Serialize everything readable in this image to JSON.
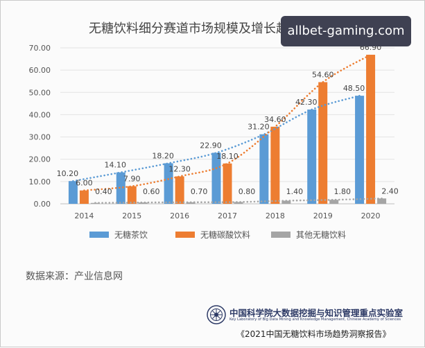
{
  "chart_data": {
    "type": "bar",
    "title": "无糖饮料细分赛道市场规模及增长趋势",
    "categories": [
      "2014",
      "2015",
      "2016",
      "2017",
      "2018",
      "2019",
      "2020"
    ],
    "y_tick_labels": [
      "0.00",
      "10.00",
      "20.00",
      "30.00",
      "40.00",
      "50.00",
      "60.00",
      "70.00"
    ],
    "ylim": [
      0,
      70
    ],
    "grid": true,
    "legend_position": "bottom",
    "trendlines": "dotted",
    "series": [
      {
        "name": "无糖茶饮",
        "color": "#5b9bd5",
        "values": [
          10.2,
          14.1,
          18.2,
          22.9,
          31.2,
          42.3,
          48.5
        ],
        "labels": [
          "10.20",
          "14.10",
          "18.20",
          "22.90",
          "31.20",
          "42.30",
          "48.50"
        ]
      },
      {
        "name": "无糖碳酸饮料",
        "color": "#ed7d31",
        "values": [
          6.0,
          7.9,
          12.3,
          18.1,
          34.6,
          54.6,
          66.9
        ],
        "labels": [
          "6.00",
          "7.90",
          "12.30",
          "18.10",
          "34.60",
          "54.60",
          "66.90"
        ]
      },
      {
        "name": "其他无糖饮料",
        "color": "#a5a5a5",
        "values": [
          0.4,
          0.6,
          0.7,
          0.8,
          1.4,
          1.8,
          2.4
        ],
        "labels": [
          "0.40",
          "0.60",
          "0.70",
          "0.80",
          "1.40",
          "1.80",
          "2.40"
        ]
      }
    ]
  },
  "watermark": "allbet-gaming.com",
  "source_text": "数据来源：产业信息网",
  "institution": {
    "name": "中国科学院大数据挖掘与知识管理重点实验室",
    "english": "Key Laboratory of Big Data Mining and Knowledge Management, Chinese Academy of Sciences",
    "report": "《2021中国无糖饮料市场趋势洞察报告》"
  }
}
